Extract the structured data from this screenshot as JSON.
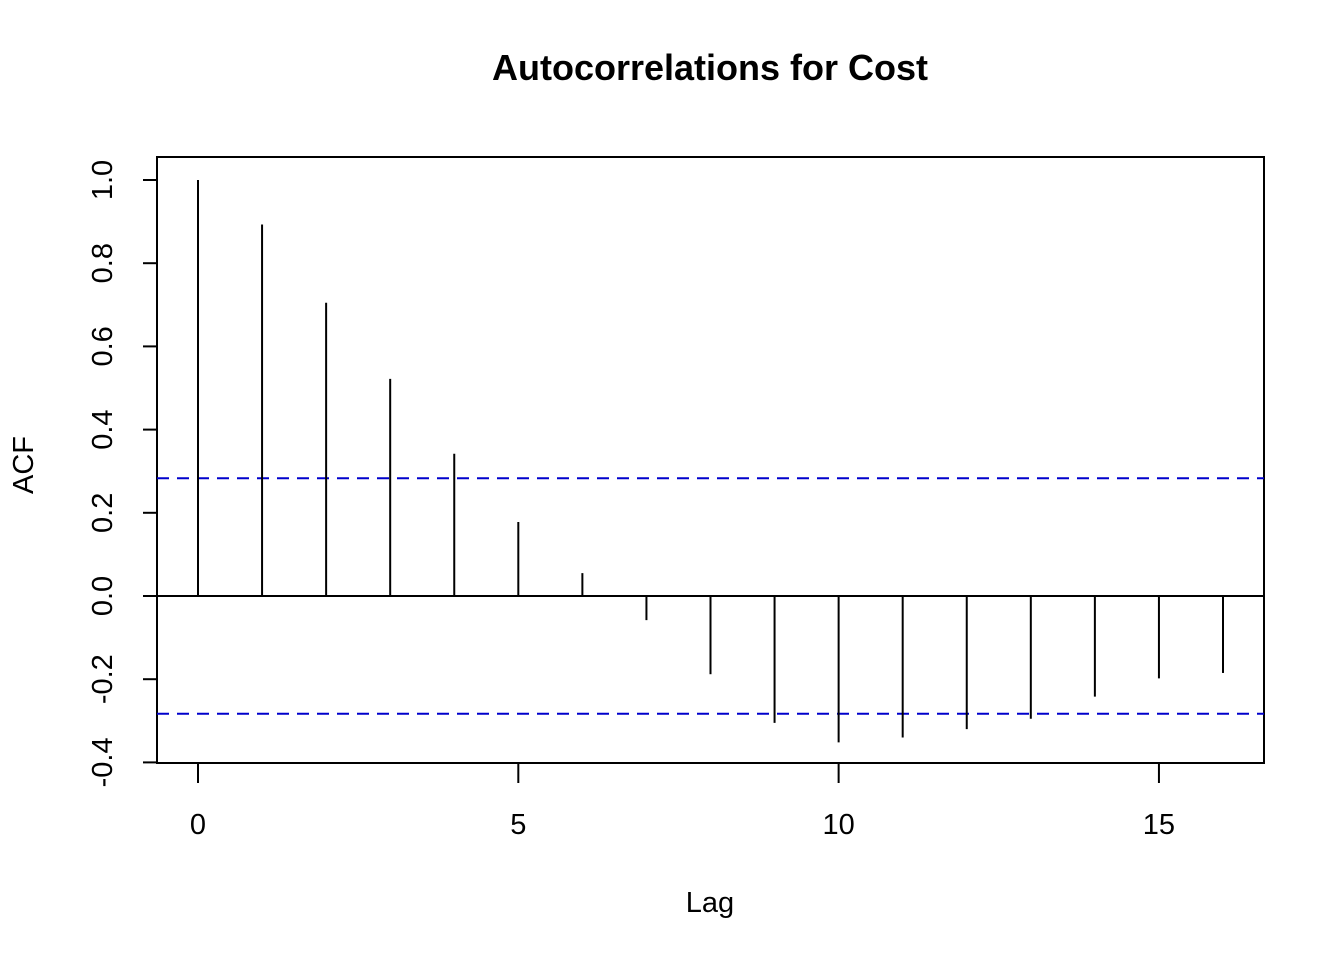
{
  "chart_data": {
    "type": "bar",
    "subtype": "acf-spikes",
    "title": "Autocorrelations for Cost",
    "xlabel": "Lag",
    "ylabel": "ACF",
    "xlim": [
      -0.64,
      16.64
    ],
    "ylim": [
      -0.4,
      1.0
    ],
    "x_ticks": [
      0,
      5,
      10,
      15
    ],
    "x_tick_labels": [
      "0",
      "5",
      "10",
      "15"
    ],
    "y_ticks": [
      -0.4,
      -0.2,
      0.0,
      0.2,
      0.4,
      0.6,
      0.8,
      1.0
    ],
    "y_tick_labels": [
      "-0.4",
      "-0.2",
      "0.0",
      "0.2",
      "0.4",
      "0.6",
      "0.8",
      "1.0"
    ],
    "lags": [
      0,
      1,
      2,
      3,
      4,
      5,
      6,
      7,
      8,
      9,
      10,
      11,
      12,
      13,
      14,
      15,
      16
    ],
    "values": [
      1.0,
      0.893,
      0.705,
      0.522,
      0.342,
      0.178,
      0.055,
      -0.058,
      -0.188,
      -0.305,
      -0.352,
      -0.34,
      -0.32,
      -0.295,
      -0.242,
      -0.198,
      -0.185
    ],
    "confidence_bounds": [
      0.283,
      -0.283
    ],
    "zero_line": true,
    "grid": false,
    "colors": {
      "spikes": "#000000",
      "bounds": "#0000cc",
      "axes": "#000000"
    }
  }
}
